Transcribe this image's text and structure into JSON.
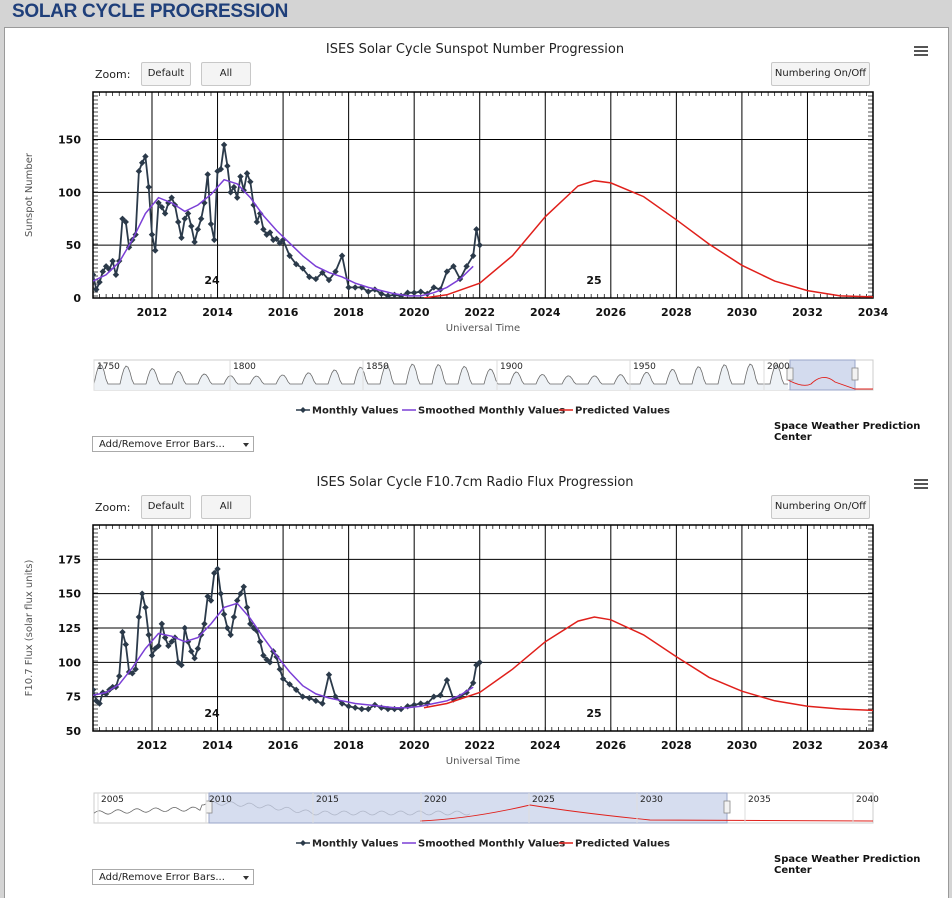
{
  "page": {
    "title": "SOLAR CYCLE PROGRESSION"
  },
  "charts": [
    {
      "title": "ISES Solar Cycle Sunspot Number Progression",
      "zoom_label": "Zoom:",
      "zoom_buttons": [
        "Default",
        "All"
      ],
      "numbering_button": "Numbering On/Off",
      "ylabel": "Sunspot Number",
      "xlabel": "Universal Time",
      "y_ticks": [
        "150",
        "100",
        "50",
        "0"
      ],
      "x_ticks": [
        "2012",
        "2014",
        "2016",
        "2018",
        "2020",
        "2022",
        "2024",
        "2026",
        "2028",
        "2030",
        "2032",
        "2034"
      ],
      "cycle_labels": [
        "24",
        "25"
      ],
      "navigator_ticks": [
        "1750",
        "1800",
        "1850",
        "1900",
        "1950",
        "2000"
      ],
      "legend": [
        "Monthly Values",
        "Smoothed Monthly Values",
        "Predicted Values"
      ],
      "credit": "Space Weather Prediction Center",
      "error_bars_select": "Add/Remove Error Bars..."
    },
    {
      "title": "ISES Solar Cycle F10.7cm Radio Flux Progression",
      "zoom_label": "Zoom:",
      "zoom_buttons": [
        "Default",
        "All"
      ],
      "numbering_button": "Numbering On/Off",
      "ylabel": "F10.7 Flux (solar flux units)",
      "xlabel": "Universal Time",
      "y_ticks": [
        "175",
        "150",
        "125",
        "100",
        "75",
        "50"
      ],
      "x_ticks": [
        "2012",
        "2014",
        "2016",
        "2018",
        "2020",
        "2022",
        "2024",
        "2026",
        "2028",
        "2030",
        "2032",
        "2034"
      ],
      "cycle_labels": [
        "24",
        "25"
      ],
      "navigator_ticks": [
        "2005",
        "2010",
        "2015",
        "2020",
        "2025",
        "2030",
        "2035",
        "2040"
      ],
      "legend": [
        "Monthly Values",
        "Smoothed Monthly Values",
        "Predicted Values"
      ],
      "credit": "Space Weather Prediction Center",
      "error_bars_select": "Add/Remove Error Bars..."
    }
  ],
  "colors": {
    "monthly": "#2b3a4a",
    "smoothed": "#7b3fd6",
    "predicted": "#e0201b",
    "title": "#1f3f7a"
  },
  "chart_data": [
    {
      "type": "line",
      "title": "ISES Solar Cycle Sunspot Number Progression",
      "xlabel": "Universal Time",
      "ylabel": "Sunspot Number",
      "xlim": [
        2010.2,
        2034
      ],
      "ylim": [
        0,
        195
      ],
      "series": [
        {
          "name": "Monthly Values",
          "x": [
            2010.2,
            2010.3,
            2010.4,
            2010.5,
            2010.6,
            2010.7,
            2010.8,
            2010.9,
            2011.0,
            2011.1,
            2011.2,
            2011.3,
            2011.4,
            2011.5,
            2011.6,
            2011.7,
            2011.8,
            2011.9,
            2012.0,
            2012.1,
            2012.2,
            2012.3,
            2012.4,
            2012.5,
            2012.6,
            2012.7,
            2012.8,
            2012.9,
            2013.0,
            2013.1,
            2013.2,
            2013.3,
            2013.4,
            2013.5,
            2013.6,
            2013.7,
            2013.8,
            2013.9,
            2014.0,
            2014.1,
            2014.2,
            2014.3,
            2014.4,
            2014.5,
            2014.6,
            2014.7,
            2014.8,
            2014.9,
            2015.0,
            2015.1,
            2015.2,
            2015.3,
            2015.4,
            2015.5,
            2015.6,
            2015.7,
            2015.8,
            2015.9,
            2016.0,
            2016.2,
            2016.4,
            2016.6,
            2016.8,
            2017.0,
            2017.2,
            2017.4,
            2017.6,
            2017.8,
            2018.0,
            2018.2,
            2018.4,
            2018.6,
            2018.8,
            2019.0,
            2019.2,
            2019.4,
            2019.6,
            2019.8,
            2020.0,
            2020.2,
            2020.4,
            2020.6,
            2020.8,
            2021.0,
            2021.2,
            2021.4,
            2021.6,
            2021.8,
            2021.9,
            2022.0
          ],
          "y": [
            22,
            8,
            15,
            25,
            30,
            27,
            35,
            22,
            35,
            75,
            72,
            48,
            55,
            60,
            120,
            128,
            134,
            105,
            60,
            45,
            90,
            86,
            80,
            90,
            95,
            88,
            72,
            57,
            75,
            80,
            68,
            53,
            65,
            75,
            90,
            117,
            70,
            55,
            120,
            122,
            145,
            125,
            100,
            105,
            95,
            115,
            102,
            118,
            110,
            88,
            72,
            80,
            65,
            60,
            62,
            55,
            56,
            52,
            55,
            40,
            32,
            28,
            20,
            18,
            24,
            17,
            25,
            40,
            10,
            10,
            10,
            6,
            8,
            4,
            2,
            3,
            2,
            5,
            5,
            6,
            4,
            10,
            8,
            25,
            30,
            18,
            30,
            40,
            65,
            50
          ]
        },
        {
          "name": "Smoothed Monthly Values",
          "x": [
            2010.2,
            2010.6,
            2011.0,
            2011.4,
            2011.8,
            2012.2,
            2012.6,
            2013.0,
            2013.4,
            2013.8,
            2014.2,
            2014.6,
            2015.0,
            2015.4,
            2015.8,
            2016.2,
            2016.6,
            2017.0,
            2017.4,
            2017.8,
            2018.2,
            2018.6,
            2019.0,
            2019.4,
            2019.8,
            2020.2,
            2020.6,
            2021.0,
            2021.4,
            2021.8
          ],
          "y": [
            16,
            22,
            34,
            55,
            80,
            95,
            90,
            82,
            88,
            98,
            112,
            108,
            95,
            78,
            64,
            52,
            40,
            30,
            24,
            20,
            14,
            10,
            7,
            4,
            2,
            2,
            5,
            10,
            18,
            30
          ]
        },
        {
          "name": "Predicted Values",
          "x": [
            2020.3,
            2021,
            2022,
            2023,
            2024,
            2025,
            2025.5,
            2026,
            2027,
            2028,
            2029,
            2030,
            2031,
            2032,
            2033,
            2034
          ],
          "y": [
            0,
            3,
            14,
            40,
            77,
            106,
            111,
            109,
            96,
            74,
            51,
            31,
            16,
            7,
            2,
            1
          ]
        }
      ]
    },
    {
      "type": "line",
      "title": "ISES Solar Cycle F10.7cm Radio Flux Progression",
      "xlabel": "Universal Time",
      "ylabel": "F10.7 Flux (solar flux units)",
      "xlim": [
        2010.2,
        2034
      ],
      "ylim": [
        50,
        200
      ],
      "series": [
        {
          "name": "Monthly Values",
          "x": [
            2010.2,
            2010.3,
            2010.4,
            2010.5,
            2010.6,
            2010.7,
            2010.8,
            2010.9,
            2011.0,
            2011.1,
            2011.2,
            2011.3,
            2011.4,
            2011.5,
            2011.6,
            2011.7,
            2011.8,
            2011.9,
            2012.0,
            2012.1,
            2012.2,
            2012.3,
            2012.4,
            2012.5,
            2012.6,
            2012.7,
            2012.8,
            2012.9,
            2013.0,
            2013.1,
            2013.2,
            2013.3,
            2013.4,
            2013.5,
            2013.6,
            2013.7,
            2013.8,
            2013.9,
            2014.0,
            2014.1,
            2014.2,
            2014.3,
            2014.4,
            2014.5,
            2014.6,
            2014.7,
            2014.8,
            2014.9,
            2015.0,
            2015.1,
            2015.2,
            2015.3,
            2015.4,
            2015.5,
            2015.6,
            2015.7,
            2015.8,
            2015.9,
            2016.0,
            2016.2,
            2016.4,
            2016.6,
            2016.8,
            2017.0,
            2017.2,
            2017.4,
            2017.6,
            2017.8,
            2018.0,
            2018.2,
            2018.4,
            2018.6,
            2018.8,
            2019.0,
            2019.2,
            2019.4,
            2019.6,
            2019.8,
            2020.0,
            2020.2,
            2020.4,
            2020.6,
            2020.8,
            2021.0,
            2021.2,
            2021.4,
            2021.6,
            2021.8,
            2021.9,
            2022.0
          ],
          "y": [
            80,
            72,
            70,
            78,
            77,
            80,
            82,
            82,
            90,
            122,
            113,
            93,
            92,
            95,
            133,
            150,
            140,
            120,
            105,
            110,
            112,
            128,
            118,
            112,
            115,
            118,
            100,
            98,
            125,
            115,
            108,
            103,
            110,
            120,
            128,
            148,
            145,
            165,
            168,
            150,
            135,
            125,
            120,
            133,
            145,
            150,
            155,
            140,
            128,
            125,
            123,
            115,
            105,
            102,
            100,
            108,
            104,
            95,
            88,
            84,
            80,
            75,
            74,
            72,
            70,
            91,
            75,
            70,
            68,
            67,
            66,
            66,
            69,
            67,
            66,
            66,
            66,
            68,
            69,
            70,
            70,
            75,
            76,
            87,
            73,
            75,
            78,
            85,
            98,
            100
          ]
        },
        {
          "name": "Smoothed Monthly Values",
          "x": [
            2010.2,
            2010.6,
            2011.0,
            2011.4,
            2011.8,
            2012.2,
            2012.6,
            2013.0,
            2013.4,
            2013.8,
            2014.2,
            2014.6,
            2015.0,
            2015.4,
            2015.8,
            2016.2,
            2016.6,
            2017.0,
            2017.4,
            2017.8,
            2018.2,
            2018.6,
            2019.0,
            2019.4,
            2019.8,
            2020.2,
            2020.6,
            2021.0,
            2021.4,
            2021.8
          ],
          "y": [
            76,
            78,
            84,
            96,
            110,
            121,
            119,
            115,
            118,
            128,
            140,
            143,
            132,
            118,
            105,
            93,
            83,
            77,
            74,
            72,
            70,
            69,
            68,
            67,
            67,
            68,
            70,
            72,
            76,
            82
          ]
        },
        {
          "name": "Predicted Values",
          "x": [
            2020.3,
            2021,
            2022,
            2023,
            2024,
            2025,
            2025.5,
            2026,
            2027,
            2028,
            2029,
            2030,
            2031,
            2032,
            2033,
            2034
          ],
          "y": [
            67,
            70,
            78,
            95,
            115,
            130,
            133,
            131,
            120,
            104,
            89,
            79,
            72,
            68,
            66,
            65
          ]
        }
      ]
    }
  ]
}
